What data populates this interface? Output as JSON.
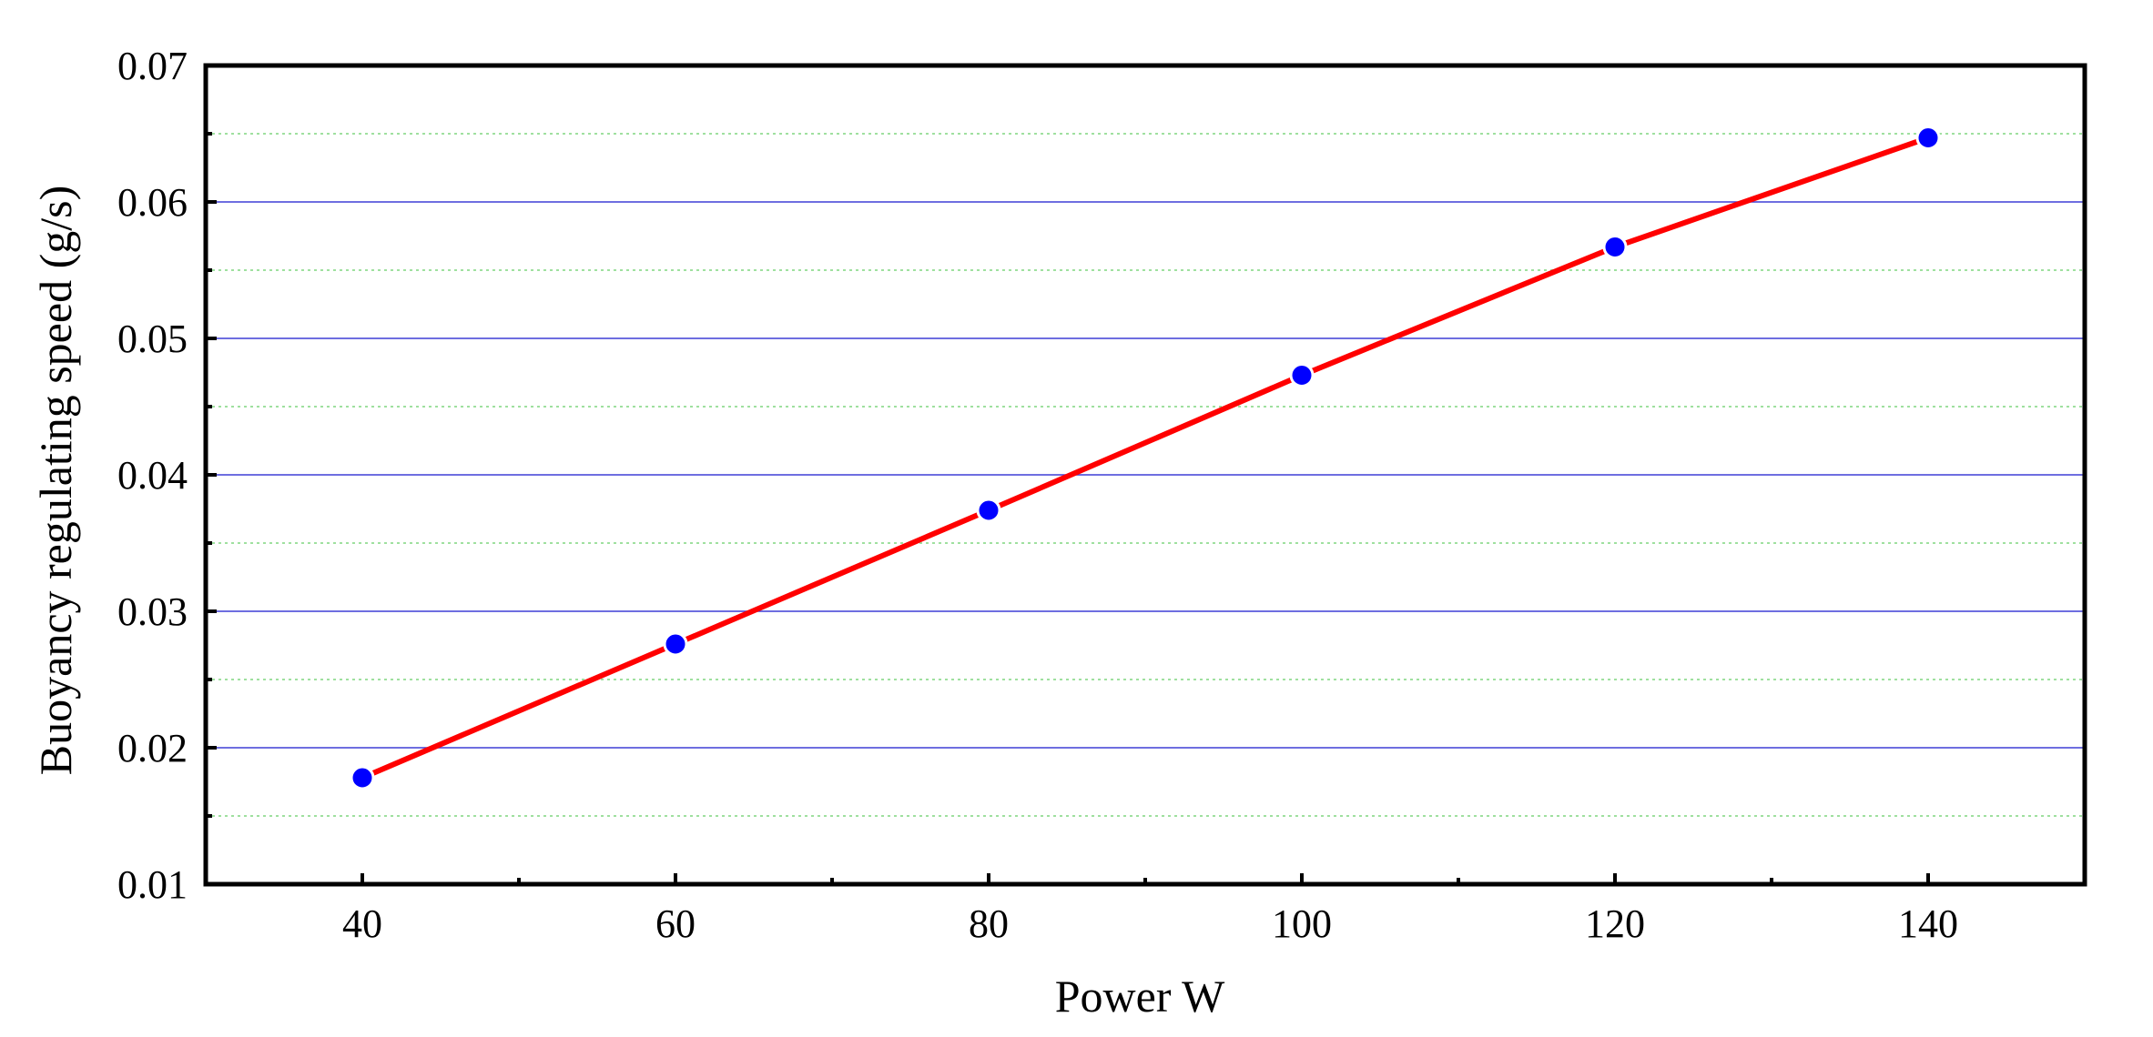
{
  "chart_data": {
    "type": "line",
    "title": "",
    "xlabel": "Power W",
    "ylabel": "Buoyancy regulating speed (g/s)",
    "xlim": [
      30,
      150
    ],
    "ylim": [
      0.01,
      0.07
    ],
    "x_ticks": [
      40,
      60,
      80,
      100,
      120,
      140
    ],
    "x_tick_labels": [
      "40",
      "60",
      "80",
      "100",
      "120",
      "140"
    ],
    "y_ticks": [
      0.01,
      0.02,
      0.03,
      0.04,
      0.05,
      0.06,
      0.07
    ],
    "y_tick_labels": [
      "0.01",
      "0.02",
      "0.03",
      "0.04",
      "0.05",
      "0.06",
      "0.07"
    ],
    "grid": "on",
    "legend": "none",
    "series": [
      {
        "x": [
          40,
          60,
          80,
          100,
          120,
          140
        ],
        "values": [
          0.0178,
          0.0276,
          0.0374,
          0.0473,
          0.0567,
          0.0647
        ],
        "line_color": "#ff0000",
        "marker_color": "#0000ff"
      }
    ],
    "colors": {
      "major_grid": "#3f3fd6",
      "minor_grid": "#9fe09f",
      "axis": "#000000"
    }
  }
}
